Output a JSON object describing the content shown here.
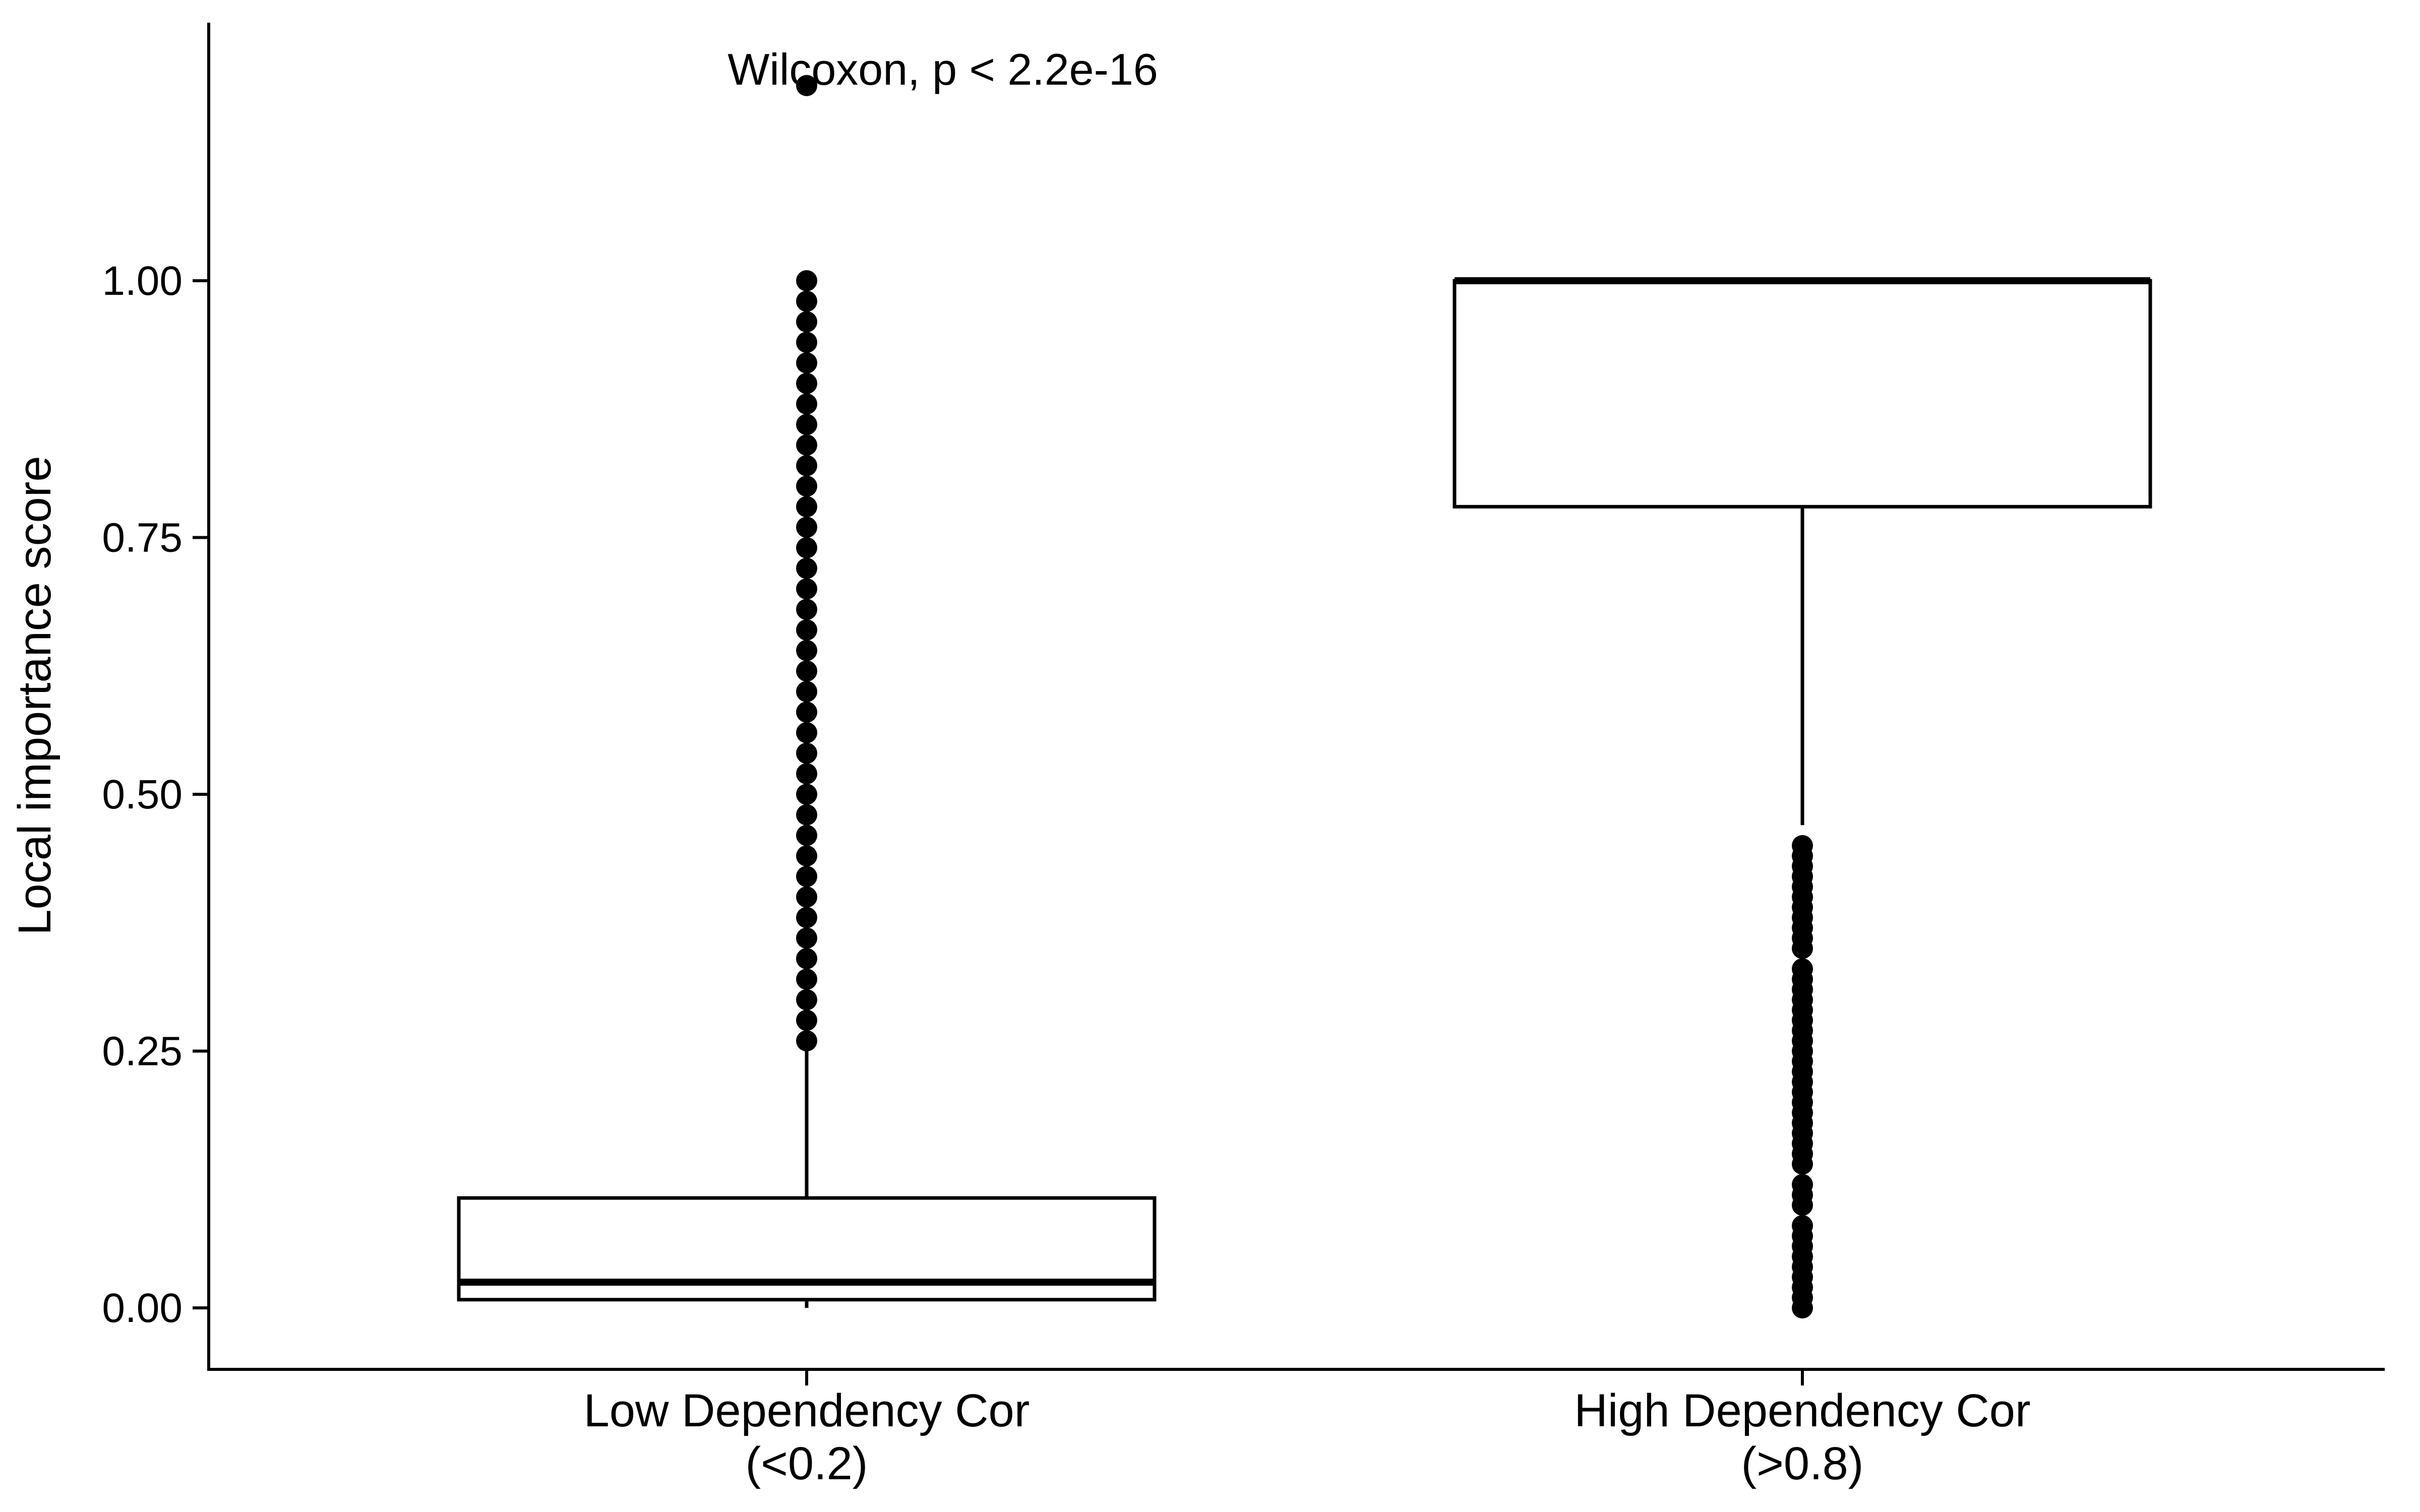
{
  "chart_data": {
    "type": "box",
    "title": "",
    "xlabel": "",
    "ylabel": "Local importance score",
    "ylim": [
      -0.06,
      1.25
    ],
    "yticks": [
      0.0,
      0.25,
      0.5,
      0.75,
      1.0
    ],
    "ytick_labels": [
      "0.00",
      "0.25",
      "0.50",
      "0.75",
      "1.00"
    ],
    "grid": false,
    "annotation": "Wilcoxon, p < 2.2e-16",
    "categories": [
      {
        "label_line1": "Low Dependency Cor",
        "label_line2": "(<0.2)",
        "min": 0.0,
        "q1": 0.008,
        "median": 0.025,
        "q3": 0.107,
        "whisker_high": 0.25,
        "outliers": [
          0.26,
          0.28,
          0.3,
          0.32,
          0.34,
          0.36,
          0.38,
          0.4,
          0.42,
          0.44,
          0.46,
          0.48,
          0.5,
          0.52,
          0.54,
          0.56,
          0.58,
          0.6,
          0.62,
          0.64,
          0.66,
          0.68,
          0.7,
          0.72,
          0.74,
          0.76,
          0.78,
          0.8,
          0.82,
          0.84,
          0.86,
          0.88,
          0.9,
          0.92,
          0.94,
          0.96,
          0.98,
          1.0,
          1.19
        ]
      },
      {
        "label_line1": "High Dependency Cor",
        "label_line2": "(>0.8)",
        "whisker_low": 0.47,
        "q1": 0.78,
        "median": 1.0,
        "q3": 1.0,
        "max": 1.0,
        "outliers": [
          0.0,
          0.01,
          0.02,
          0.03,
          0.04,
          0.05,
          0.06,
          0.07,
          0.08,
          0.1,
          0.11,
          0.12,
          0.14,
          0.15,
          0.16,
          0.17,
          0.18,
          0.19,
          0.2,
          0.21,
          0.22,
          0.23,
          0.24,
          0.25,
          0.26,
          0.27,
          0.28,
          0.29,
          0.3,
          0.31,
          0.32,
          0.33,
          0.35,
          0.36,
          0.37,
          0.38,
          0.39,
          0.4,
          0.41,
          0.42,
          0.43,
          0.44,
          0.45
        ]
      }
    ]
  }
}
